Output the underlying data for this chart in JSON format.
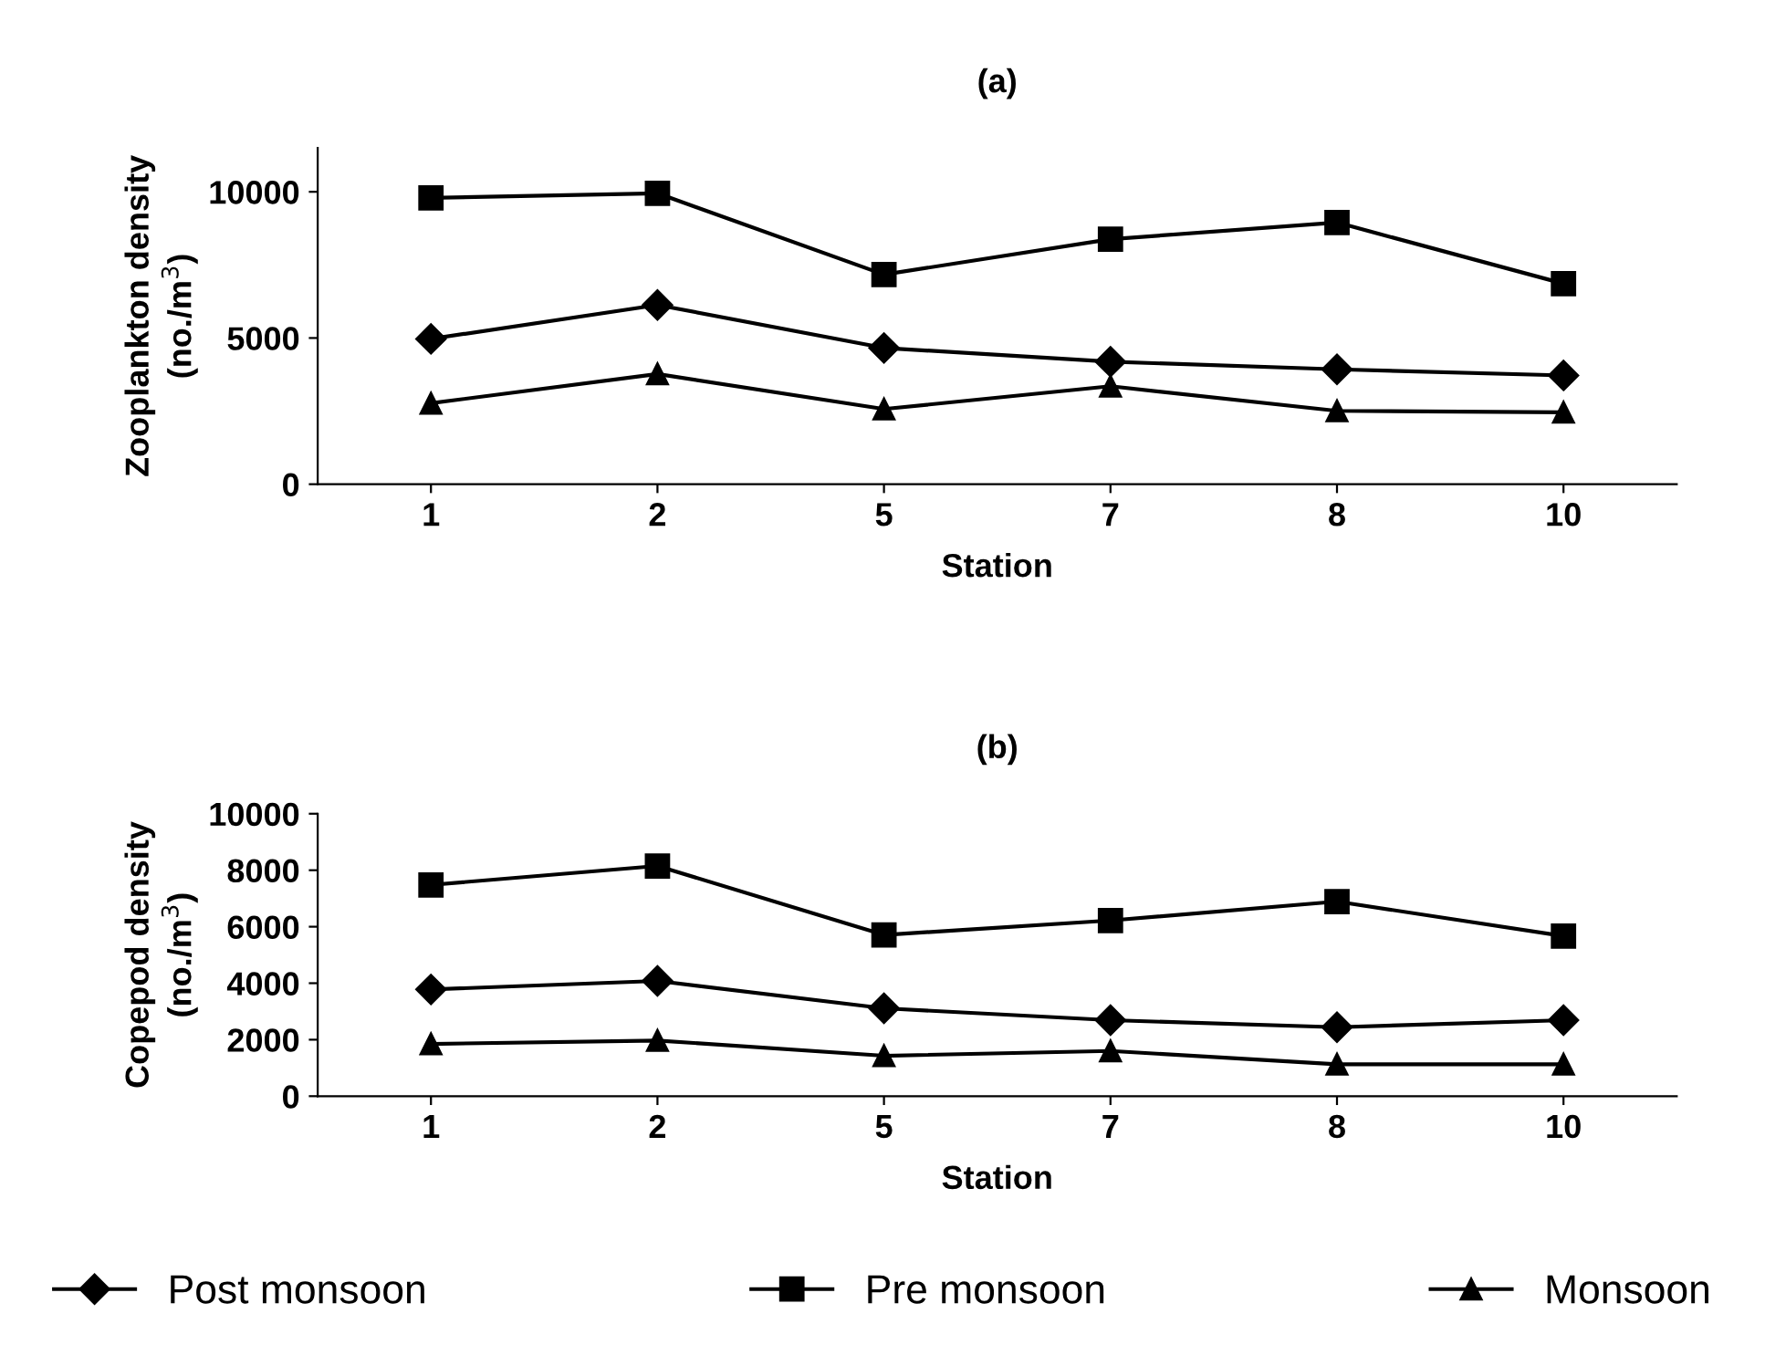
{
  "chart_data": [
    {
      "type": "line",
      "title": "(a)",
      "xlabel": "Station",
      "ylabel": "Zooplankton density\n(no./m$^{3}$)",
      "categories": [
        "1",
        "2",
        "5",
        "7",
        "8",
        "10"
      ],
      "ylim": [
        0,
        11500
      ],
      "yticks": [
        0,
        5000,
        10000
      ],
      "grid": false,
      "legend": false,
      "series": [
        {
          "color": "#000000",
          "marker": "diamond",
          "values": [
            4970,
            6130,
            4660,
            4190,
            3930,
            3720
          ]
        },
        {
          "color": "#000000",
          "marker": "square",
          "values": [
            9790,
            9950,
            7170,
            8380,
            8950,
            6860
          ]
        },
        {
          "color": "#000000",
          "marker": "triangle",
          "values": [
            2770,
            3770,
            2570,
            3350,
            2510,
            2460
          ]
        }
      ]
    },
    {
      "type": "line",
      "title": "(b)",
      "xlabel": "Station",
      "ylabel": "Copepod density\n(no./m$^{3}$)",
      "categories": [
        "1",
        "2",
        "5",
        "7",
        "8",
        "10"
      ],
      "ylim": [
        0,
        10000
      ],
      "yticks": [
        0,
        2000,
        4000,
        6000,
        8000,
        10000
      ],
      "grid": false,
      "legend": "bottom",
      "series": [
        {
          "name": "Post monsoon",
          "color": "#000000",
          "marker": "diamond",
          "values": [
            3780,
            4080,
            3110,
            2690,
            2440,
            2690
          ]
        },
        {
          "name": "Pre monsoon",
          "color": "#000000",
          "marker": "square",
          "values": [
            7480,
            8150,
            5710,
            6220,
            6890,
            5670
          ]
        },
        {
          "name": "Monsoon",
          "color": "#000000",
          "marker": "triangle",
          "values": [
            1850,
            1970,
            1430,
            1600,
            1130,
            1130
          ]
        }
      ]
    }
  ]
}
